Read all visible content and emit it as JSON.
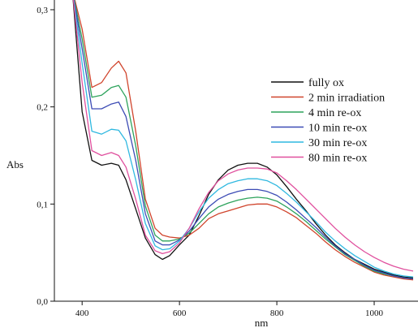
{
  "chart_data": {
    "type": "line",
    "xlabel": "nm",
    "ylabel": "Abs",
    "xlim": [
      343,
      1090
    ],
    "ylim": [
      0,
      0.31
    ],
    "x_ticks": [
      400,
      600,
      800,
      1000
    ],
    "x_tick_labels": [
      "400",
      "600",
      "800",
      "1000"
    ],
    "y_ticks": [
      0,
      0.1,
      0.2,
      0.3
    ],
    "y_tick_labels": [
      "0,0",
      "0,1",
      "0,2",
      "0,3"
    ],
    "grid": false,
    "legend_position": "right",
    "x": [
      380,
      400,
      420,
      440,
      460,
      475,
      490,
      510,
      530,
      550,
      565,
      580,
      600,
      620,
      640,
      660,
      680,
      700,
      720,
      740,
      760,
      780,
      800,
      820,
      840,
      860,
      880,
      900,
      920,
      940,
      960,
      980,
      1000,
      1020,
      1040,
      1060,
      1080
    ],
    "series": [
      {
        "name": "fully ox",
        "color": "#111111",
        "values": [
          0.32,
          0.195,
          0.145,
          0.14,
          0.142,
          0.14,
          0.125,
          0.095,
          0.065,
          0.048,
          0.043,
          0.047,
          0.058,
          0.068,
          0.088,
          0.11,
          0.125,
          0.135,
          0.14,
          0.142,
          0.142,
          0.138,
          0.13,
          0.118,
          0.105,
          0.093,
          0.08,
          0.068,
          0.058,
          0.05,
          0.043,
          0.038,
          0.033,
          0.03,
          0.027,
          0.025,
          0.024
        ]
      },
      {
        "name": "2 min irradiation",
        "color": "#d0442c",
        "values": [
          0.32,
          0.28,
          0.22,
          0.225,
          0.24,
          0.247,
          0.235,
          0.175,
          0.105,
          0.075,
          0.068,
          0.066,
          0.065,
          0.068,
          0.075,
          0.085,
          0.09,
          0.093,
          0.096,
          0.099,
          0.1,
          0.1,
          0.097,
          0.092,
          0.086,
          0.078,
          0.07,
          0.061,
          0.053,
          0.046,
          0.04,
          0.035,
          0.03,
          0.027,
          0.025,
          0.023,
          0.022
        ]
      },
      {
        "name": "4 min re-ox",
        "color": "#2da35c",
        "values": [
          0.32,
          0.27,
          0.21,
          0.212,
          0.22,
          0.222,
          0.21,
          0.16,
          0.098,
          0.068,
          0.062,
          0.062,
          0.064,
          0.07,
          0.08,
          0.09,
          0.097,
          0.101,
          0.104,
          0.106,
          0.107,
          0.106,
          0.103,
          0.097,
          0.09,
          0.082,
          0.073,
          0.064,
          0.056,
          0.048,
          0.042,
          0.036,
          0.031,
          0.028,
          0.026,
          0.024,
          0.023
        ]
      },
      {
        "name": "10 min re-ox",
        "color": "#3c4bb5",
        "values": [
          0.32,
          0.26,
          0.198,
          0.198,
          0.203,
          0.205,
          0.19,
          0.145,
          0.09,
          0.062,
          0.058,
          0.058,
          0.063,
          0.072,
          0.085,
          0.097,
          0.105,
          0.11,
          0.113,
          0.115,
          0.115,
          0.113,
          0.109,
          0.102,
          0.094,
          0.085,
          0.076,
          0.066,
          0.057,
          0.049,
          0.043,
          0.037,
          0.032,
          0.029,
          0.026,
          0.024,
          0.023
        ]
      },
      {
        "name": "30 min re-ox",
        "color": "#2fb8e0",
        "values": [
          0.32,
          0.245,
          0.175,
          0.172,
          0.177,
          0.176,
          0.165,
          0.125,
          0.08,
          0.057,
          0.053,
          0.054,
          0.062,
          0.075,
          0.092,
          0.106,
          0.115,
          0.121,
          0.124,
          0.126,
          0.126,
          0.124,
          0.119,
          0.111,
          0.102,
          0.092,
          0.082,
          0.071,
          0.062,
          0.054,
          0.047,
          0.041,
          0.035,
          0.031,
          0.028,
          0.026,
          0.025
        ]
      },
      {
        "name": "80 min re-ox",
        "color": "#e0509e",
        "values": [
          0.32,
          0.225,
          0.155,
          0.15,
          0.153,
          0.15,
          0.138,
          0.105,
          0.068,
          0.052,
          0.049,
          0.051,
          0.06,
          0.075,
          0.095,
          0.112,
          0.124,
          0.131,
          0.135,
          0.137,
          0.137,
          0.136,
          0.132,
          0.124,
          0.115,
          0.105,
          0.095,
          0.085,
          0.075,
          0.066,
          0.058,
          0.051,
          0.045,
          0.04,
          0.036,
          0.033,
          0.031
        ]
      }
    ]
  }
}
